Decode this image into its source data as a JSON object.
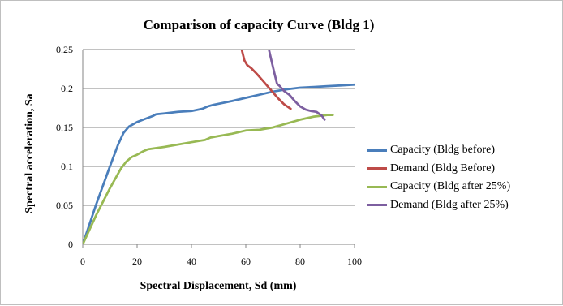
{
  "chart_data": {
    "type": "line",
    "title": "Comparison of capacity Curve (Bldg 1)",
    "xlabel": "Spectral Displacement, Sd (mm)",
    "ylabel": "Spectral acceleration, Sa",
    "xlim": [
      0,
      100
    ],
    "ylim": [
      0,
      0.25
    ],
    "xticks": [
      "0",
      "20",
      "40",
      "60",
      "80",
      "100"
    ],
    "yticks": [
      "0",
      "0.05",
      "0.1",
      "0.15",
      "0.2",
      "0.25"
    ],
    "grid": "horizontal",
    "legend_position": "right",
    "series": [
      {
        "name": "Capacity (Bldg before)",
        "color": "#4a7ebb",
        "x": [
          0,
          5,
          10,
          13,
          15,
          17,
          20,
          23,
          26,
          27,
          30,
          35,
          40,
          44,
          46,
          48,
          55,
          60,
          65,
          70,
          75,
          80,
          85,
          90,
          95,
          100
        ],
        "y": [
          0,
          0.052,
          0.1,
          0.128,
          0.143,
          0.151,
          0.157,
          0.161,
          0.165,
          0.167,
          0.168,
          0.17,
          0.171,
          0.174,
          0.177,
          0.179,
          0.184,
          0.188,
          0.192,
          0.196,
          0.199,
          0.201,
          0.202,
          0.203,
          0.204,
          0.205
        ]
      },
      {
        "name": "Demand (Bldg Before)",
        "color": "#be4b48",
        "x": [
          58.5,
          59.5,
          60.5,
          62,
          64,
          66,
          68,
          70,
          72,
          74,
          76.5
        ],
        "y": [
          0.25,
          0.236,
          0.23,
          0.226,
          0.219,
          0.211,
          0.203,
          0.195,
          0.187,
          0.18,
          0.174
        ]
      },
      {
        "name": "Capacity (Bldg after 25%)",
        "color": "#98b954",
        "x": [
          0,
          5,
          10,
          14,
          16,
          18,
          20,
          22,
          24,
          30,
          40,
          45,
          47,
          50,
          55,
          60,
          65,
          70,
          75,
          80,
          85,
          90,
          92
        ],
        "y": [
          0,
          0.038,
          0.072,
          0.097,
          0.106,
          0.112,
          0.115,
          0.119,
          0.122,
          0.125,
          0.131,
          0.134,
          0.137,
          0.139,
          0.142,
          0.146,
          0.147,
          0.15,
          0.155,
          0.16,
          0.164,
          0.166,
          0.166
        ]
      },
      {
        "name": "Demand (Bldg after 25%)",
        "color": "#7d5fa0",
        "x": [
          68.5,
          69.5,
          70.5,
          71.5,
          72.5,
          74,
          76,
          78,
          80,
          82,
          84,
          86,
          88,
          89
        ],
        "y": [
          0.25,
          0.235,
          0.22,
          0.206,
          0.203,
          0.197,
          0.192,
          0.184,
          0.177,
          0.173,
          0.171,
          0.17,
          0.165,
          0.16
        ]
      }
    ]
  }
}
